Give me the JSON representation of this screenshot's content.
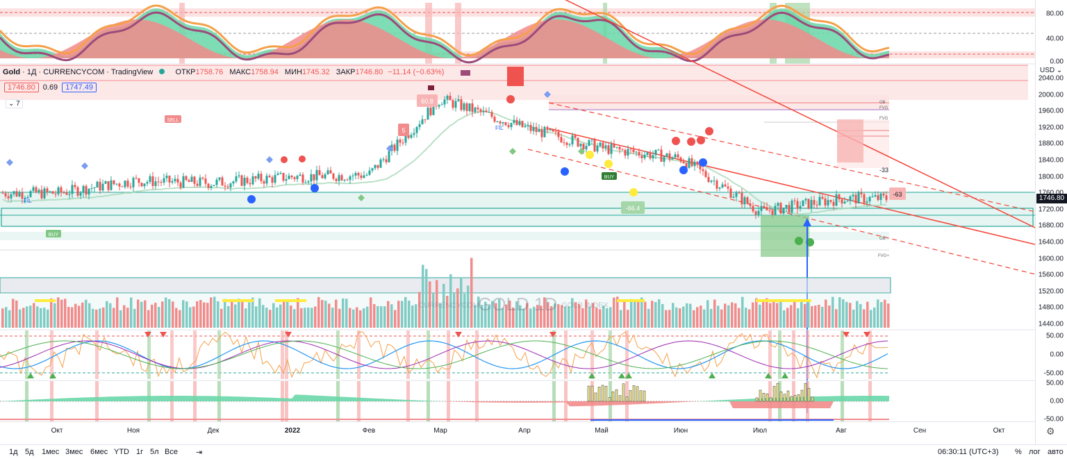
{
  "legend": {
    "symbol": "Gold",
    "interval": "1Д",
    "source": "CURRENCYCOM",
    "platform": "TradingView",
    "open_label": "ОТКР",
    "open": "1758.76",
    "high_label": "МАКС",
    "high": "1758.94",
    "low_label": "МИН",
    "low": "1745.32",
    "close_label": "ЗАКР",
    "close": "1746.80",
    "change": "−11.14 (−0.63%)"
  },
  "price_box": {
    "bid": "1746.80",
    "spread": "0.69",
    "ask": "1747.49"
  },
  "indicators_collapsed": "7",
  "currency": "USD",
  "watermark": {
    "main": "GOLD 1D",
    "left": "CURRENCYCOM",
    "right": "GOLD INDEX"
  },
  "oscillator_axis": [
    "80.00",
    "40.00",
    "0.00"
  ],
  "price_axis": [
    "2040.00",
    "2000.00",
    "1960.00",
    "1920.00",
    "1880.00",
    "1840.00",
    "1800.00",
    "1760.00",
    "1720.00",
    "1680.00",
    "1640.00",
    "1600.00",
    "1560.00",
    "1520.00",
    "1480.00",
    "1440.00"
  ],
  "last_price_tag": "1746.80",
  "rsi_axis": [
    "50.00",
    "0.00",
    "-50.00"
  ],
  "macd_axis": [
    "50.00",
    "0.00",
    "-50.00"
  ],
  "time_axis": [
    "Окт",
    "Ноя",
    "Дек",
    "2022",
    "Фев",
    "Мар",
    "Апр",
    "Май",
    "Июн",
    "Июл",
    "Авг",
    "Сен",
    "Окт"
  ],
  "timeframes": [
    "1д",
    "5д",
    "1мес",
    "3мес",
    "6мес",
    "YTD",
    "1г",
    "5л",
    "Все"
  ],
  "clock": "06:30:11 (UTC+3)",
  "scale_options": [
    "%",
    "лог",
    "авто"
  ],
  "annotations": {
    "sell": "SELL",
    "buy": "BUY",
    "label_608": "60.8",
    "label_5": "5",
    "label_664": "-66.4",
    "label_33": "-33",
    "label_63": "-63",
    "ob": "OB",
    "fvg": "FVG",
    "fvg_plus": "FVG+",
    "fil": "FIL"
  },
  "colors": {
    "up": "#26a69a",
    "down": "#ef5350",
    "trend": "#f44336"
  },
  "chart_data": {
    "type": "line",
    "title": "Gold, 1Д, CURRENCYCOM",
    "x": [
      "Окт",
      "Ноя",
      "Дек",
      "2022",
      "Фев",
      "Мар",
      "Апр",
      "Май",
      "Июн",
      "Июл",
      "Авг"
    ],
    "series": [
      {
        "name": "Gold",
        "values": [
          1760,
          1790,
          1785,
          1800,
          1805,
          1990,
          1920,
          1870,
          1845,
          1715,
          1746.8
        ]
      }
    ],
    "ylim": [
      1440,
      2040
    ],
    "ylabel": "USD"
  }
}
